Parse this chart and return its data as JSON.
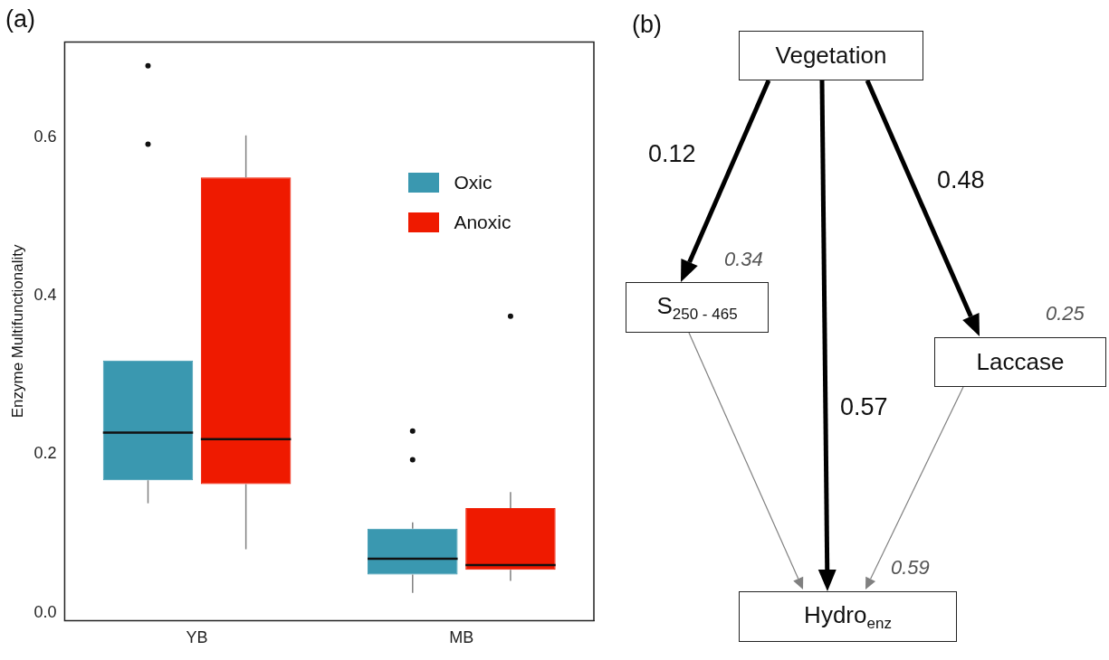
{
  "chart_data": [
    {
      "type": "box",
      "title": "(a)",
      "ylabel": "Enzyme Multifunctionality",
      "categories": [
        "YB",
        "MB"
      ],
      "ylim": [
        -0.01,
        0.72
      ],
      "yticks": [
        {
          "value": 0,
          "label": "0.0"
        },
        0.2,
        0.4,
        0.6
      ],
      "grid": false,
      "legend": "top right",
      "series": [
        {
          "name": "Oxic",
          "color": "#3a98b0",
          "boxes": [
            {
              "low": 0.138,
              "q1": 0.167,
              "median": 0.227,
              "q3": 0.318,
              "high": 0.318,
              "outliers": [
                0.591,
                0.69
              ]
            },
            {
              "low": 0.025,
              "q1": 0.048,
              "median": 0.068,
              "q3": 0.106,
              "high": 0.114,
              "outliers": [
                0.193,
                0.229
              ]
            }
          ]
        },
        {
          "name": "Anoxic",
          "color": "#ef1a00",
          "boxes": [
            {
              "low": 0.08,
              "q1": 0.162,
              "median": 0.219,
              "q3": 0.549,
              "high": 0.602
            },
            {
              "low": 0.04,
              "q1": 0.054,
              "median": 0.06,
              "q3": 0.132,
              "high": 0.152,
              "outliers": [
                0.374
              ]
            }
          ]
        }
      ]
    },
    {
      "type": "other",
      "title": "(b)",
      "annotations": [
        "Vegetation",
        "S$_{250 - 465}$",
        "Laccase",
        "Hydro$_{enz}$",
        "0.12",
        "0.57",
        "0.48",
        "0.34",
        "0.25",
        "0.59"
      ]
    }
  ]
}
